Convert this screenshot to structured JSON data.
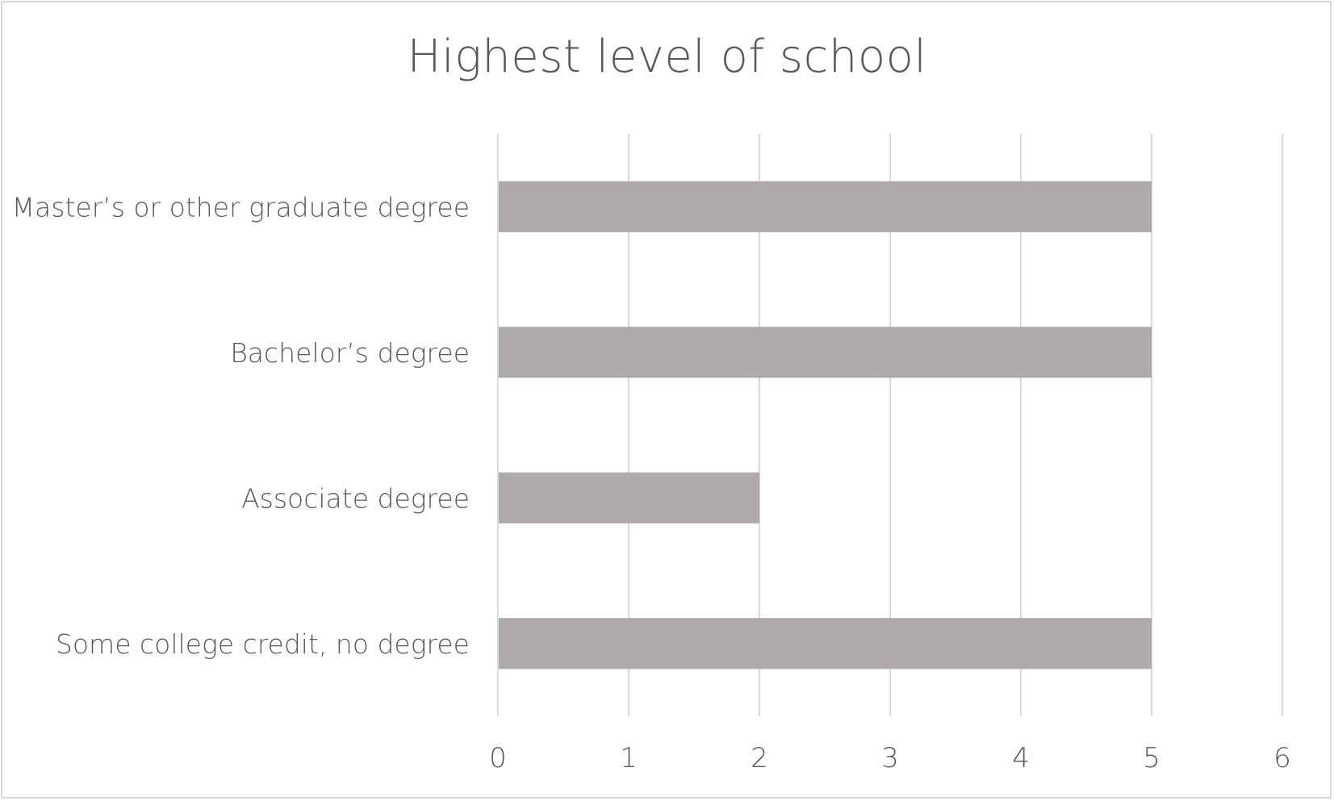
{
  "chart_data": {
    "type": "bar",
    "orientation": "horizontal",
    "title": "Highest level of school",
    "categories": [
      "Master’s or other graduate degree",
      "Bachelor’s degree",
      "Associate degree",
      "Some college credit, no degree"
    ],
    "values": [
      5,
      5,
      2,
      5
    ],
    "xlim": [
      0,
      6
    ],
    "x_ticks": [
      "0",
      "1",
      "2",
      "3",
      "4",
      "5",
      "6"
    ],
    "xlabel": "",
    "ylabel": "",
    "grid": "vertical",
    "legend": "none",
    "colors": {
      "bar": "#aeaaa9",
      "grid": "#d9d9d9",
      "text": "#595959"
    }
  }
}
